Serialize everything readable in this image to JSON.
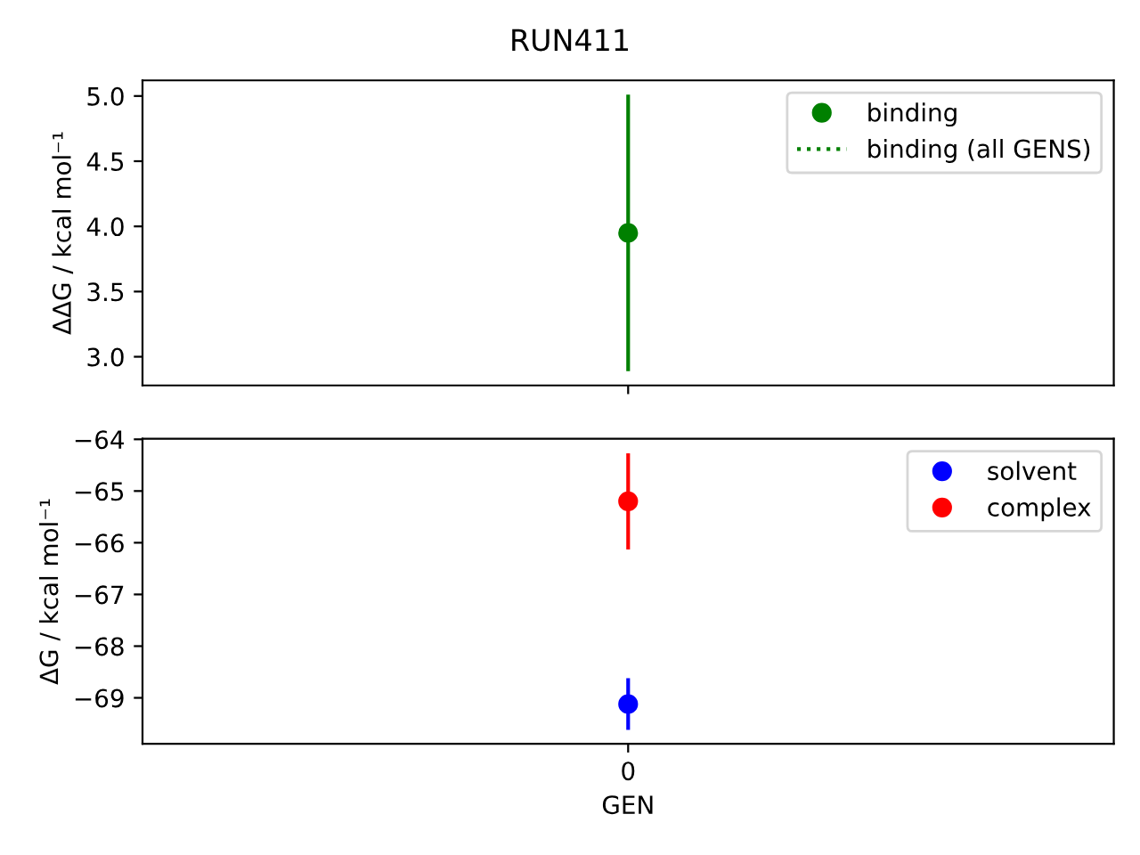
{
  "chart_data": [
    {
      "type": "scatter",
      "title": "RUN411",
      "ylabel": "ΔΔG / kcal mol⁻¹",
      "categories": [
        null
      ],
      "marker": "circle",
      "legend": "top right",
      "grid": false,
      "ylim": [
        2.78,
        5.12
      ],
      "yticks": [
        {
          "value": 3,
          "label": "3.0"
        },
        {
          "value": 3.5,
          "label": "3.5"
        },
        {
          "value": 4,
          "label": "4.0"
        },
        {
          "value": 4.5,
          "label": "4.5"
        },
        {
          "value": 5,
          "label": "5.0"
        }
      ],
      "series": [
        {
          "name": "binding",
          "color": "#008000",
          "values": [
            3.95
          ],
          "errors": [
            1.06
          ]
        },
        {
          "name": "binding (all GENS)",
          "type": "line",
          "line_style": "dotted",
          "marker": "none",
          "color": "#008000",
          "values": [
            null
          ]
        }
      ]
    },
    {
      "type": "scatter",
      "xlabel": "GEN",
      "ylabel": "ΔG / kcal mol⁻¹",
      "categories": [
        "0"
      ],
      "marker": "circle",
      "legend": "top right",
      "grid": false,
      "ylim": [
        -69.89,
        -63.99
      ],
      "yticks": [
        {
          "value": -69,
          "label": "−69"
        },
        {
          "value": -68,
          "label": "−68"
        },
        {
          "value": -67,
          "label": "−67"
        },
        {
          "value": -66,
          "label": "−66"
        },
        {
          "value": -65,
          "label": "−65"
        },
        {
          "value": -64,
          "label": "−64"
        }
      ],
      "series": [
        {
          "name": "solvent",
          "color": "#0000ff",
          "values": [
            -69.12
          ],
          "errors": [
            0.5
          ]
        },
        {
          "name": "complex",
          "color": "#ff0000",
          "values": [
            -65.2
          ],
          "errors": [
            0.93
          ]
        }
      ]
    }
  ]
}
